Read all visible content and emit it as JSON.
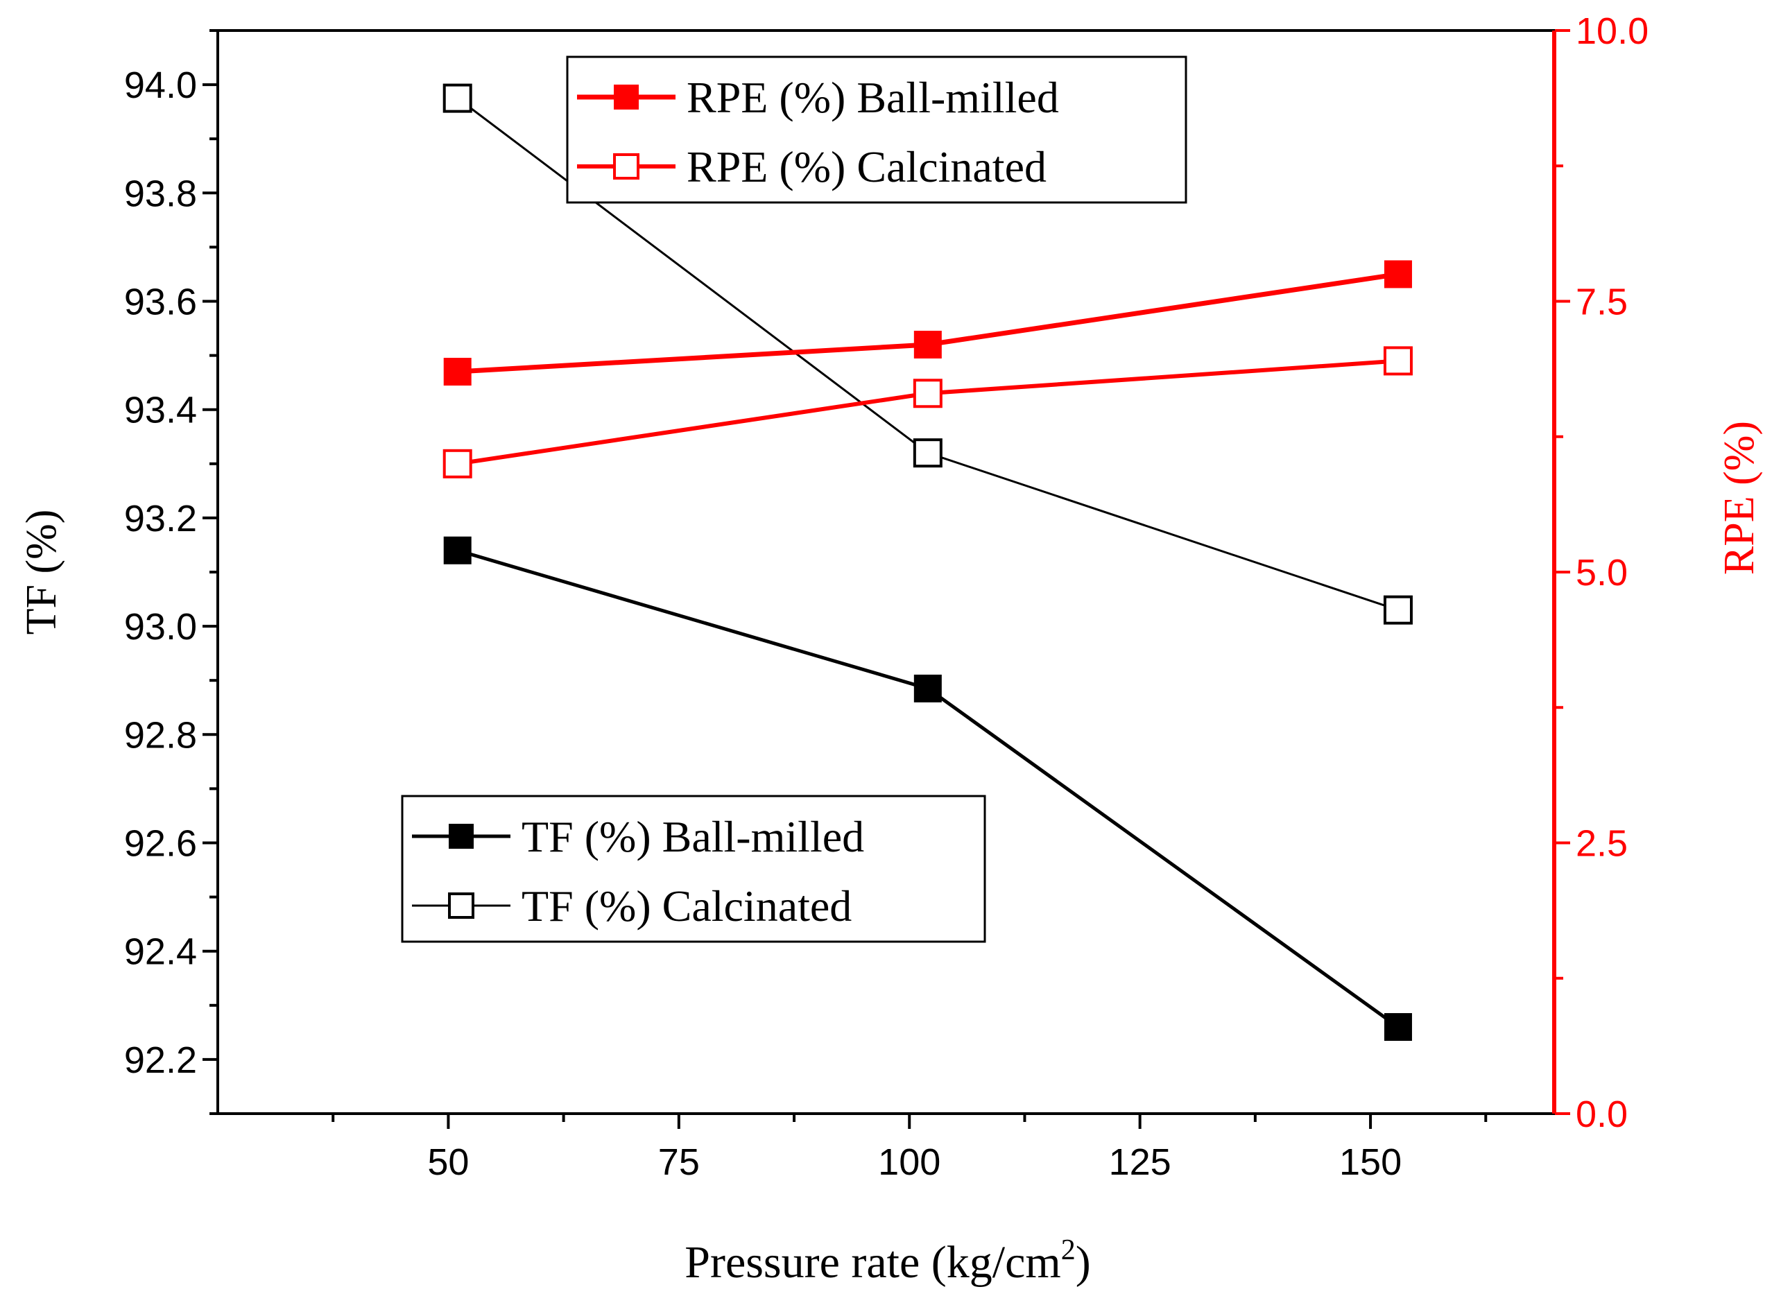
{
  "chart_data": {
    "type": "line",
    "xlabel": "Pressure rate (kg/cm",
    "xlabel_sup": "2",
    "xlabel_close": ")",
    "ylabel_left": "TF (%)",
    "ylabel_right": "RPE (%)",
    "x_range": [
      25,
      170
    ],
    "y_left_range": [
      92.1,
      94.1
    ],
    "y_right_range": [
      0,
      10
    ],
    "x_ticks": [
      "50",
      "75",
      "100",
      "125",
      "150"
    ],
    "x_tick_values": [
      50,
      75,
      100,
      125,
      150
    ],
    "y_left_ticks": [
      "92.2",
      "92.4",
      "92.6",
      "92.8",
      "93.0",
      "93.2",
      "93.4",
      "93.6",
      "93.8",
      "94.0"
    ],
    "y_left_tick_values": [
      92.2,
      92.4,
      92.6,
      92.8,
      93.0,
      93.2,
      93.4,
      93.6,
      93.8,
      94.0
    ],
    "y_right_ticks": [
      "0.0",
      "2.5",
      "5.0",
      "7.5",
      "10.0"
    ],
    "y_right_tick_values": [
      0,
      2.5,
      5,
      7.5,
      10
    ],
    "x": [
      51,
      102,
      153
    ],
    "series": [
      {
        "name": "TF (%) Ball-milled",
        "axis": "left",
        "values": [
          93.14,
          92.885,
          92.26
        ],
        "color": "#000000",
        "marker": "filled-square"
      },
      {
        "name": "TF (%) Calcinated",
        "axis": "left",
        "values": [
          93.975,
          93.32,
          93.03
        ],
        "color": "#000000",
        "marker": "open-square"
      },
      {
        "name": "RPE (%) Ball-milled",
        "axis": "right",
        "values": [
          6.85,
          7.1,
          7.75
        ],
        "color": "#ff0000",
        "marker": "filled-square"
      },
      {
        "name": "RPE (%) Calcinated",
        "axis": "right",
        "values": [
          6.0,
          6.65,
          6.95
        ],
        "color": "#ff0000",
        "marker": "open-square"
      }
    ],
    "legends": [
      {
        "position": "top-center",
        "entries": [
          "RPE (%) Ball-milled",
          "RPE (%) Calcinated"
        ]
      },
      {
        "position": "bottom-left",
        "entries": [
          "TF (%) Ball-milled",
          "TF (%) Calcinated"
        ]
      }
    ]
  }
}
